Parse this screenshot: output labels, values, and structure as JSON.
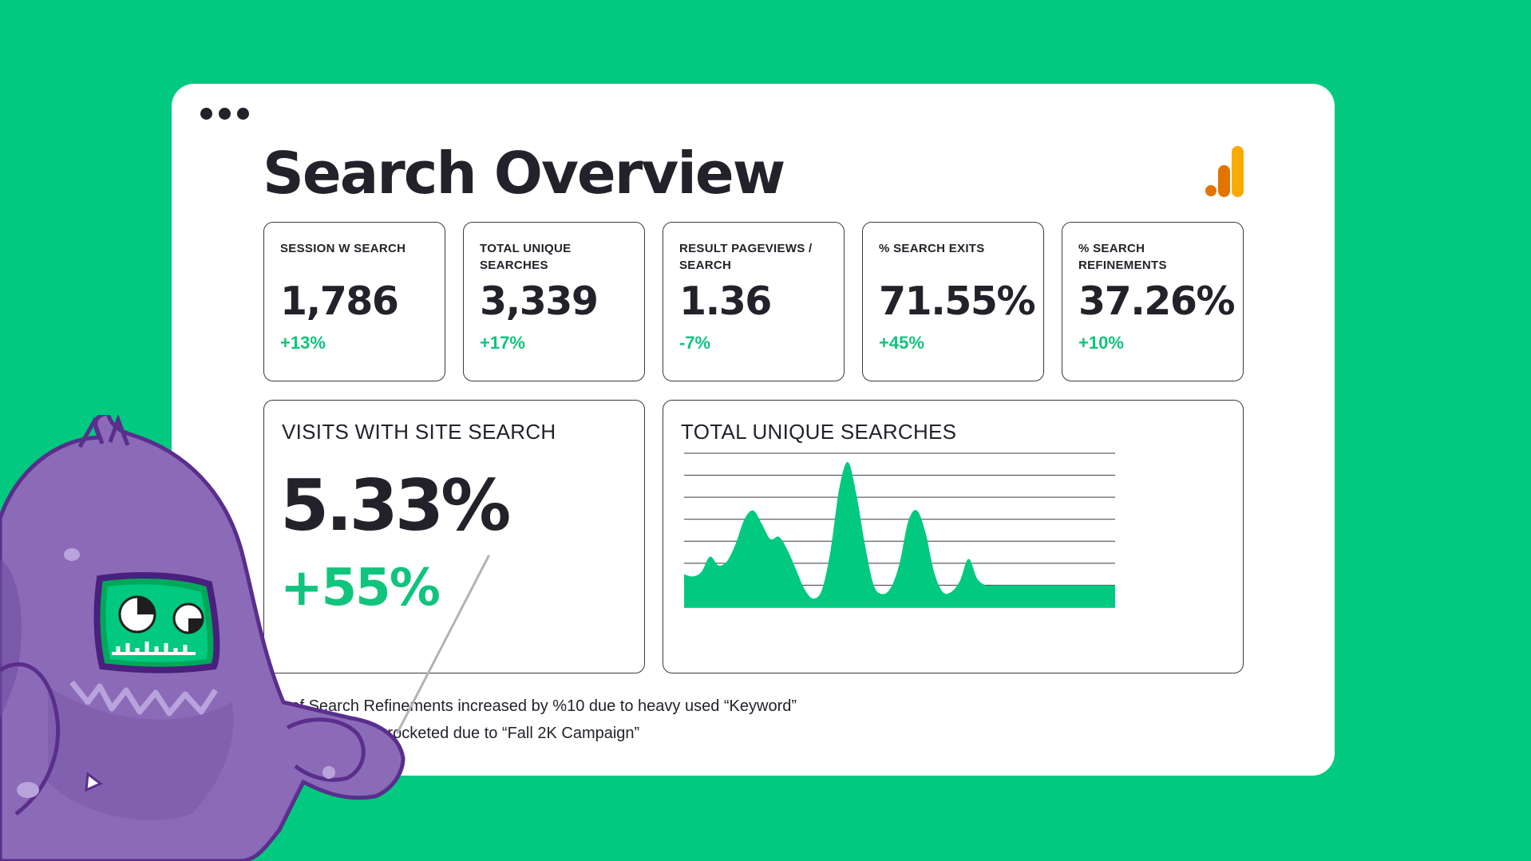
{
  "window": {
    "menu_icon": "more-dots-icon",
    "logo_icon": "analytics-bars-icon"
  },
  "title": "Search Overview",
  "kpis": [
    {
      "label": "SESSION W SEARCH",
      "value": "1,786",
      "change": "+13%"
    },
    {
      "label": "TOTAL UNIQUE SEARCHES",
      "value": "3,339",
      "change": "+17%"
    },
    {
      "label": "RESULT PAGEVIEWS / SEARCH",
      "value": "1.36",
      "change": "-7%"
    },
    {
      "label": "% SEARCH EXITS",
      "value": "71.55%",
      "change": "+45%"
    },
    {
      "label": "% SEARCH REFINEMENTS",
      "value": "37.26%",
      "change": "+10%"
    }
  ],
  "site_search": {
    "title": "VISITS WITH SITE SEARCH",
    "value": "5.33%",
    "change": "+55%"
  },
  "trend": {
    "title": "TOTAL UNIQUE SEARCHES"
  },
  "chart_data": {
    "type": "area",
    "title": "TOTAL UNIQUE SEARCHES",
    "xlabel": "",
    "ylabel": "",
    "grid": true,
    "ylim": [
      0,
      7
    ],
    "x": [
      0,
      1,
      2,
      3,
      4,
      5,
      6,
      7,
      8,
      9,
      10,
      11,
      12,
      13,
      14,
      15,
      16,
      17,
      18,
      19,
      20,
      21,
      22,
      23,
      24,
      25,
      26,
      27,
      28,
      29,
      30,
      31,
      32,
      33,
      34,
      35,
      36,
      37,
      38,
      39,
      40,
      41,
      42,
      43,
      44,
      45,
      46,
      47,
      48,
      49,
      50
    ],
    "series": [
      {
        "values": [
          1.5,
          1.4,
          1.6,
          2.3,
          1.9,
          2.1,
          2.9,
          4.0,
          4.4,
          3.8,
          3.1,
          3.2,
          2.6,
          1.7,
          0.8,
          0.4,
          0.8,
          2.6,
          5.4,
          6.6,
          5.1,
          2.8,
          1.0,
          0.6,
          0.9,
          2.0,
          3.9,
          4.4,
          3.4,
          1.6,
          0.7,
          0.7,
          1.2,
          2.2,
          1.3,
          1.0,
          1.0,
          1.0,
          1.0,
          1.0,
          1.0,
          1.0,
          1.0,
          1.0,
          1.0,
          1.0,
          1.0,
          1.0,
          1.0,
          1.0,
          1.0
        ]
      }
    ],
    "colors": {
      "fill": "#01c97f",
      "grid": "#3a3940"
    }
  },
  "notes": [
    "% of Search Refinements increased by %10 due to heavy used “Keyword”",
    "Site Search sky rocketed due to “Fall 2K Campaign”"
  ],
  "mascot": {
    "icon": "purple-monster-mascot-icon",
    "pointer": "pointer-stick-icon"
  },
  "colors": {
    "background": "#01c97f",
    "accent_green": "#10c47d",
    "text": "#23222a",
    "monster": "#8b6bb8"
  }
}
